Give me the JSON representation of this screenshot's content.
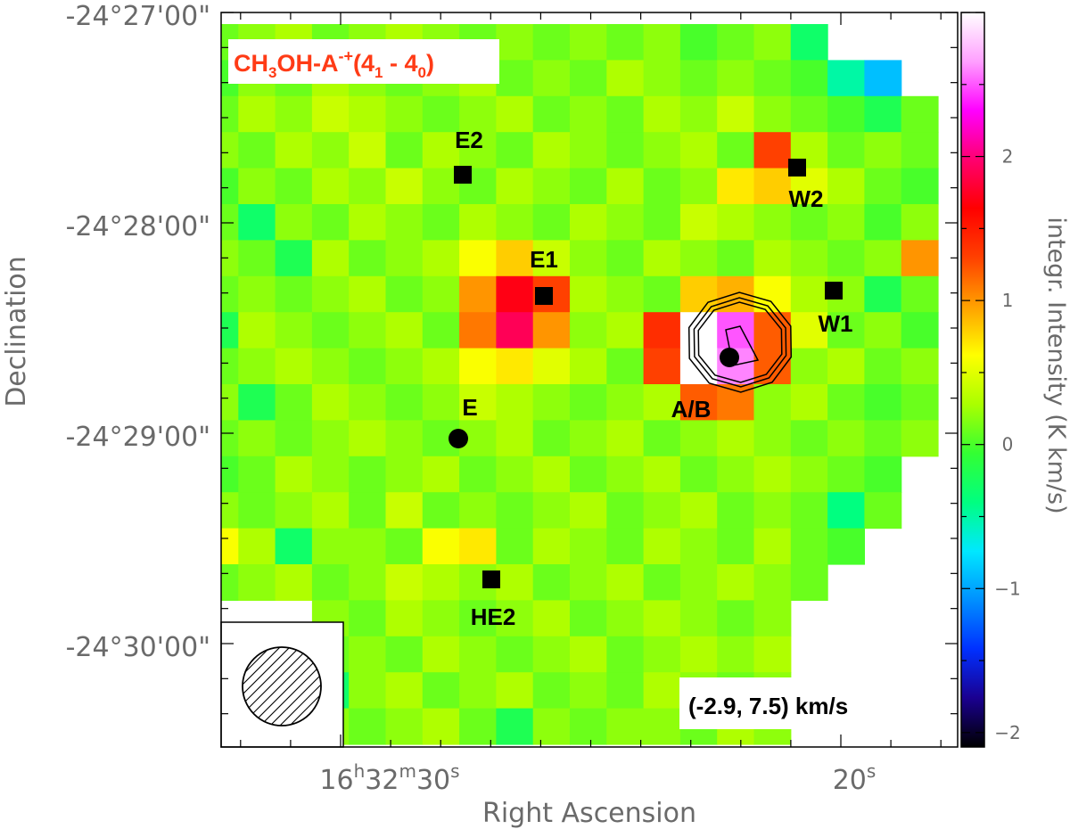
{
  "chart_data": {
    "type": "heatmap",
    "title": "CH₃OH-A⁻⁺(4₁ - 4₀)",
    "title_parts": {
      "base": "CH",
      "sub1": "3",
      "mid": "OH-A",
      "sup": "-+",
      "open": "(4",
      "sub2": "1",
      "dash": " - 4",
      "sub3": "0",
      "close": ")"
    },
    "velocity_range_label": "(-2.9, 7.5) km/s",
    "xlabel": "Right Ascension",
    "ylabel": "Declination",
    "colorbar_label": "integr. Intensity (K km/s)",
    "colorbar_ticks": [
      "-2",
      "-1",
      "0",
      "1",
      "2"
    ],
    "colorbar_range": [
      -2.1,
      3.0
    ],
    "colormap": [
      "#000000",
      "#1a0090",
      "#0030ff",
      "#0090ff",
      "#00e8ff",
      "#00ff80",
      "#33ff33",
      "#aaff00",
      "#ffff00",
      "#ffa000",
      "#ff4000",
      "#ff0000",
      "#ff0070",
      "#ff00ff",
      "#ffa0ff",
      "#ffffff"
    ],
    "y_ticks": [
      {
        "deg": "-24",
        "min": "27",
        "sec": "00"
      },
      {
        "deg": "-24",
        "min": "28",
        "sec": "00"
      },
      {
        "deg": "-24",
        "min": "29",
        "sec": "00"
      },
      {
        "deg": "-24",
        "min": "30",
        "sec": "00"
      }
    ],
    "x_ticks": [
      {
        "h": "16",
        "m": "32",
        "s": "30"
      },
      {
        "s": "20"
      }
    ],
    "sources": [
      {
        "name": "E2",
        "marker": "square"
      },
      {
        "name": "W2",
        "marker": "square"
      },
      {
        "name": "E1",
        "marker": "square"
      },
      {
        "name": "W1",
        "marker": "square"
      },
      {
        "name": "A/B",
        "marker": "circle"
      },
      {
        "name": "E",
        "marker": "circle"
      },
      {
        "name": "HE2",
        "marker": "square"
      }
    ],
    "contour_levels": [
      2.3,
      2.6,
      2.9
    ],
    "grid_size": [
      20,
      20
    ],
    "intensity_map": [
      [
        0.1,
        0.2,
        0.3,
        0.1,
        0.2,
        0.3,
        0.2,
        0.1,
        0.2,
        0.1,
        0.2,
        0.1,
        0.2,
        0.0,
        0.1,
        0.2,
        -0.3,
        null,
        null,
        null
      ],
      [
        0.0,
        0.2,
        0.1,
        0.3,
        0.2,
        0.1,
        0.2,
        0.3,
        0.1,
        0.2,
        0.1,
        0.3,
        0.2,
        0.1,
        0.2,
        0.1,
        0.0,
        -0.5,
        -0.9,
        null
      ],
      [
        0.1,
        0.3,
        0.2,
        0.4,
        0.3,
        0.2,
        0.1,
        0.2,
        0.3,
        0.1,
        0.2,
        0.1,
        0.3,
        0.2,
        0.4,
        0.2,
        0.1,
        0.0,
        -0.2,
        0.1
      ],
      [
        0.2,
        0.1,
        0.3,
        0.2,
        0.4,
        0.1,
        0.3,
        0.2,
        0.1,
        0.3,
        0.2,
        0.1,
        0.2,
        0.3,
        0.1,
        1.3,
        0.3,
        0.1,
        0.2,
        0.1
      ],
      [
        0.0,
        0.2,
        0.1,
        0.3,
        0.2,
        0.4,
        0.2,
        0.1,
        0.3,
        0.2,
        0.1,
        0.3,
        0.1,
        0.2,
        0.7,
        0.8,
        0.5,
        0.3,
        0.1,
        0.0
      ],
      [
        0.1,
        -0.3,
        0.2,
        0.1,
        0.3,
        0.2,
        0.1,
        0.3,
        0.2,
        0.1,
        0.3,
        0.2,
        0.1,
        0.4,
        0.3,
        0.2,
        0.1,
        0.2,
        0.0,
        0.2
      ],
      [
        0.2,
        0.1,
        -0.2,
        0.3,
        0.1,
        0.2,
        0.3,
        0.6,
        0.8,
        0.4,
        0.2,
        0.1,
        0.3,
        0.2,
        0.1,
        0.3,
        0.2,
        0.1,
        0.2,
        1.0
      ],
      [
        0.1,
        0.2,
        0.1,
        0.2,
        0.3,
        0.1,
        0.2,
        1.0,
        1.7,
        1.3,
        0.3,
        0.2,
        0.1,
        0.8,
        0.9,
        0.6,
        0.3,
        0.2,
        -0.2,
        0.1
      ],
      [
        -0.2,
        0.3,
        0.2,
        0.1,
        0.2,
        0.3,
        0.1,
        1.1,
        1.9,
        1.0,
        0.2,
        0.3,
        1.4,
        3.0,
        2.5,
        1.2,
        0.5,
        0.1,
        0.2,
        0.0
      ],
      [
        0.1,
        0.2,
        0.3,
        0.2,
        0.1,
        0.2,
        0.3,
        0.6,
        0.7,
        0.5,
        0.3,
        0.1,
        1.3,
        3.0,
        2.6,
        1.2,
        0.2,
        0.3,
        0.1,
        0.2
      ],
      [
        0.2,
        -0.2,
        0.1,
        0.3,
        0.2,
        0.1,
        0.2,
        0.4,
        0.3,
        0.2,
        0.1,
        0.2,
        0.3,
        1.2,
        1.1,
        0.2,
        0.3,
        0.1,
        0.0,
        0.1
      ],
      [
        0.1,
        0.2,
        0.1,
        0.2,
        0.3,
        0.2,
        0.1,
        0.2,
        0.3,
        0.1,
        0.2,
        0.3,
        0.1,
        0.2,
        0.3,
        0.2,
        0.1,
        0.2,
        0.1,
        0.2
      ],
      [
        0.0,
        0.1,
        0.3,
        0.2,
        0.1,
        0.2,
        0.3,
        0.1,
        0.2,
        0.3,
        0.1,
        0.2,
        0.3,
        0.1,
        0.2,
        0.3,
        0.2,
        0.1,
        0.0,
        null
      ],
      [
        0.2,
        0.1,
        0.2,
        0.3,
        0.1,
        0.4,
        0.1,
        0.2,
        0.1,
        0.2,
        0.3,
        0.1,
        0.2,
        0.3,
        0.1,
        0.2,
        0.1,
        -0.4,
        0.1,
        null
      ],
      [
        0.6,
        0.3,
        -0.3,
        0.2,
        0.2,
        0.1,
        0.6,
        0.7,
        0.1,
        0.3,
        0.2,
        0.1,
        0.3,
        0.2,
        0.1,
        0.3,
        0.1,
        0.0,
        null,
        null
      ],
      [
        0.1,
        0.2,
        0.3,
        0.1,
        0.2,
        0.4,
        0.3,
        0.2,
        0.3,
        0.1,
        0.2,
        0.3,
        0.1,
        0.2,
        0.3,
        0.2,
        0.1,
        null,
        null,
        null
      ],
      [
        null,
        null,
        null,
        0.2,
        0.1,
        0.3,
        0.2,
        0.1,
        0.2,
        0.3,
        0.1,
        0.2,
        0.3,
        0.2,
        0.1,
        0.2,
        null,
        null,
        null,
        null
      ],
      [
        null,
        null,
        null,
        0.1,
        0.2,
        0.1,
        0.3,
        0.2,
        0.1,
        0.2,
        0.3,
        0.1,
        0.2,
        0.3,
        0.2,
        0.3,
        null,
        null,
        null,
        null
      ],
      [
        null,
        null,
        null,
        -0.3,
        0.2,
        0.3,
        0.1,
        0.2,
        0.3,
        0.1,
        0.2,
        0.1,
        0.3,
        0.2,
        0.1,
        0.2,
        null,
        null,
        null,
        null
      ],
      [
        null,
        null,
        null,
        0.2,
        0.1,
        0.2,
        0.3,
        0.1,
        -0.2,
        0.2,
        0.1,
        0.2,
        0.2,
        0.1,
        0.3,
        0.2,
        null,
        null,
        null,
        null
      ]
    ]
  }
}
